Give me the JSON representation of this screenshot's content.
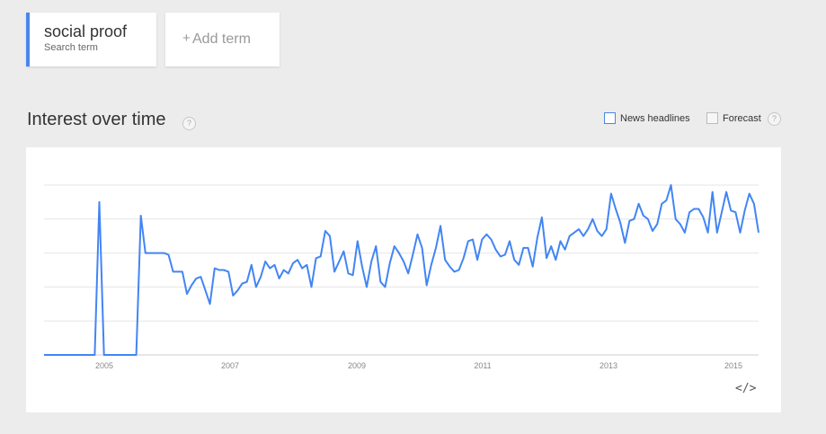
{
  "search_term": {
    "name": "social proof",
    "sublabel": "Search term"
  },
  "add_term": {
    "plus": "+",
    "label": "Add term"
  },
  "section": {
    "title": "Interest over time",
    "help": "?"
  },
  "options": {
    "news_headlines_label": "News headlines",
    "forecast_label": "Forecast",
    "help": "?"
  },
  "embed": {
    "label": "</>"
  },
  "colors": {
    "accent": "#4a86e8",
    "series": "#4285f4",
    "grid": "#e6e6e6"
  },
  "chart_data": {
    "type": "line",
    "series": [
      {
        "values": [
          0,
          0,
          0,
          0,
          0,
          0,
          0,
          0,
          0,
          0,
          0,
          0,
          90,
          0,
          0,
          0,
          0,
          0,
          0,
          0,
          0,
          82,
          60,
          60,
          60,
          60,
          60,
          59,
          49,
          49,
          49,
          36,
          41,
          45,
          46,
          38,
          30,
          51,
          50,
          50,
          49,
          35,
          38,
          42,
          43,
          53,
          40,
          46,
          55,
          51,
          53,
          45,
          50,
          48,
          54,
          56,
          51,
          53,
          40,
          57,
          58,
          73,
          70,
          49,
          55,
          61,
          48,
          47,
          67,
          52,
          40,
          55,
          64,
          43,
          40,
          54,
          64,
          60,
          55,
          48,
          59,
          71,
          63,
          41,
          53,
          63,
          76,
          56,
          52,
          49,
          50,
          57,
          67,
          68,
          56,
          68,
          71,
          68,
          62,
          58,
          59,
          67,
          56,
          53,
          63,
          63,
          52,
          69,
          81,
          57,
          64,
          56,
          67,
          62,
          70,
          72,
          74,
          70,
          74,
          80,
          73,
          70,
          74,
          95,
          86,
          78,
          66,
          79,
          80,
          89,
          82,
          80,
          73,
          77,
          89,
          91,
          100,
          80,
          77,
          72,
          84,
          86,
          86,
          81,
          72,
          96,
          72,
          84,
          96,
          85,
          84,
          72,
          85,
          95,
          89,
          72
        ]
      }
    ],
    "ylim": [
      0,
      100
    ],
    "x_ticks": [
      "2005",
      "2007",
      "2009",
      "2011",
      "2013",
      "2015"
    ],
    "grid": true
  }
}
